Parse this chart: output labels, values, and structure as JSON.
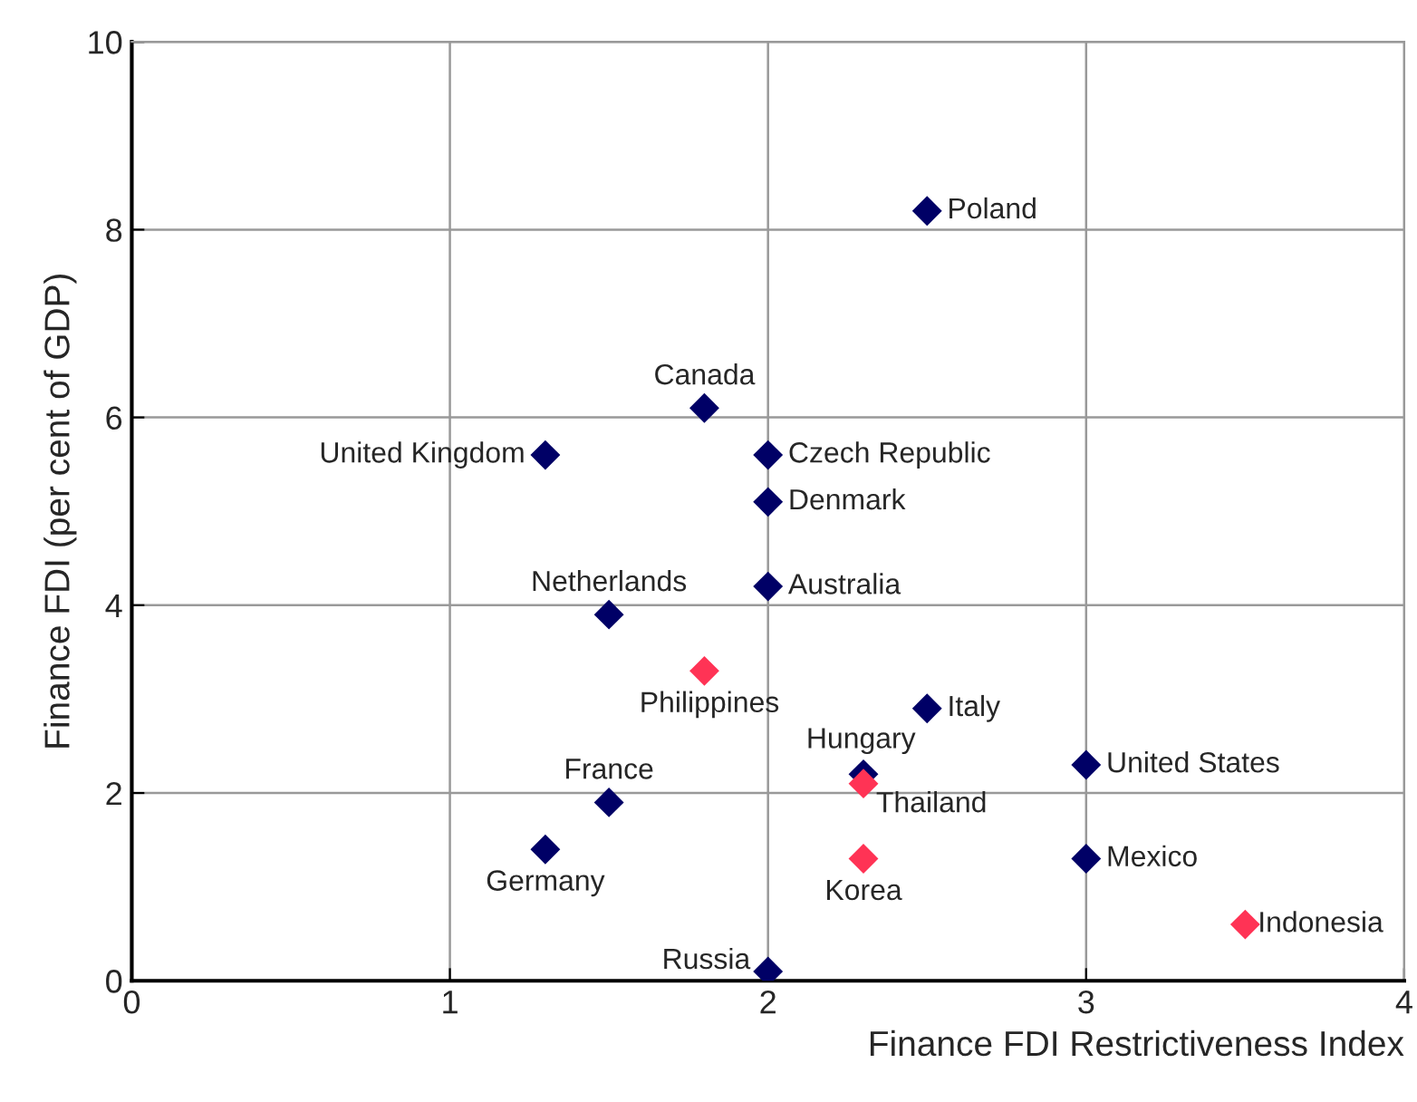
{
  "chart_data": {
    "type": "scatter",
    "xlabel": "Finance FDI Restrictiveness Index",
    "ylabel": "Finance FDI (per cent of GDP)",
    "xlim": [
      0,
      4
    ],
    "ylim": [
      0,
      10
    ],
    "xticks": [
      0,
      1,
      2,
      3,
      4
    ],
    "yticks": [
      0,
      2,
      4,
      6,
      8,
      10
    ],
    "grid": true,
    "marker": "diamond",
    "series": [
      {
        "color": "#000066",
        "x": [
          2.5,
          1.8,
          1.3,
          2.0,
          2.0,
          2.0,
          1.5,
          2.5,
          2.3,
          3.0,
          1.5,
          1.3,
          3.0,
          2.0
        ],
        "values": [
          8.2,
          6.1,
          5.6,
          5.6,
          5.1,
          4.2,
          3.9,
          2.9,
          2.2,
          2.3,
          1.9,
          1.4,
          1.3,
          0.1
        ]
      },
      {
        "color": "#ff3355",
        "x": [
          1.8,
          2.3,
          2.3,
          3.5
        ],
        "values": [
          3.3,
          2.1,
          1.3,
          0.6
        ]
      }
    ],
    "annotations": [
      {
        "text": "Poland",
        "x": 2.5,
        "y": 8.2
      },
      {
        "text": "Canada",
        "x": 1.8,
        "y": 6.1
      },
      {
        "text": "United Kingdom",
        "x": 1.3,
        "y": 5.6
      },
      {
        "text": "Czech Republic",
        "x": 2.0,
        "y": 5.6
      },
      {
        "text": "Denmark",
        "x": 2.0,
        "y": 5.1
      },
      {
        "text": "Australia",
        "x": 2.0,
        "y": 4.2
      },
      {
        "text": "Netherlands",
        "x": 1.5,
        "y": 3.9
      },
      {
        "text": "Italy",
        "x": 2.5,
        "y": 2.9
      },
      {
        "text": "Hungary",
        "x": 2.3,
        "y": 2.2
      },
      {
        "text": "United States",
        "x": 3.0,
        "y": 2.3
      },
      {
        "text": "France",
        "x": 1.5,
        "y": 1.9
      },
      {
        "text": "Germany",
        "x": 1.3,
        "y": 1.4
      },
      {
        "text": "Mexico",
        "x": 3.0,
        "y": 1.3
      },
      {
        "text": "Russia",
        "x": 2.0,
        "y": 0.1
      },
      {
        "text": "Philippines",
        "x": 1.8,
        "y": 3.3
      },
      {
        "text": "Thailand",
        "x": 2.3,
        "y": 2.1
      },
      {
        "text": "Korea",
        "x": 2.3,
        "y": 1.3
      },
      {
        "text": "Indonesia",
        "x": 3.5,
        "y": 0.6
      }
    ]
  }
}
